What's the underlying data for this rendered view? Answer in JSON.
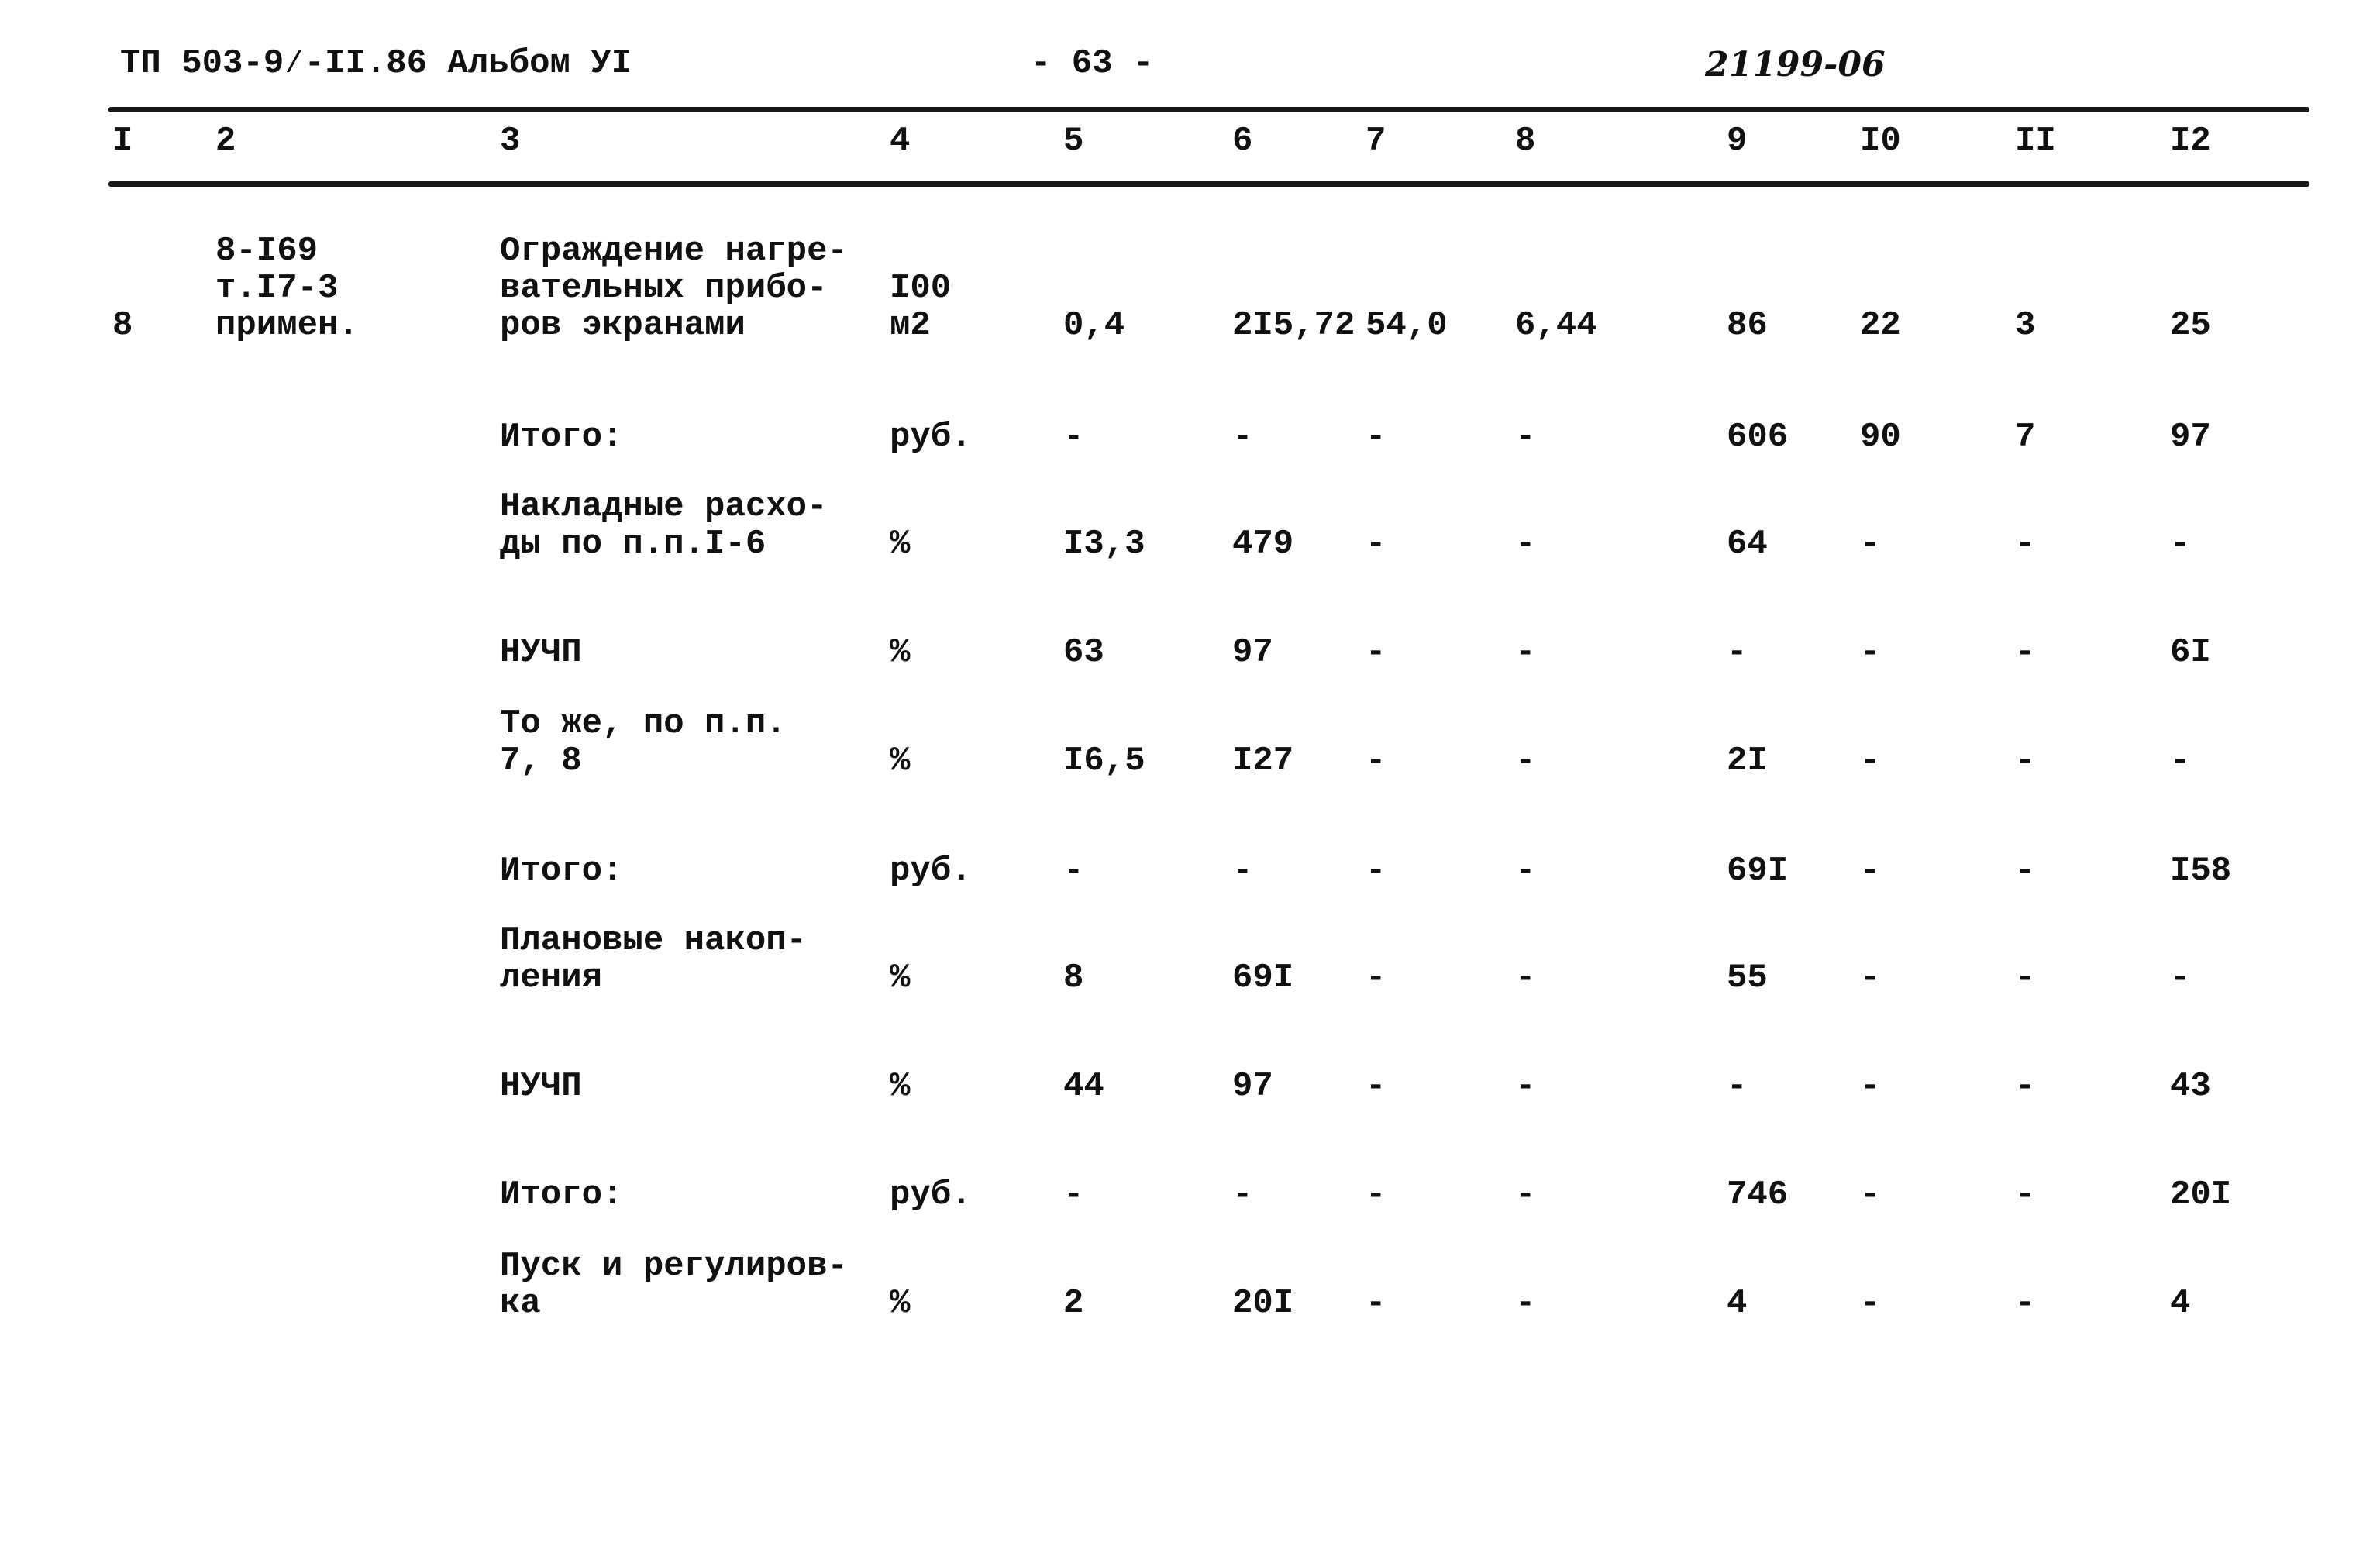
{
  "header": {
    "doc_ref": "ТП 503-9⁄-II.86 Альбом УI",
    "page": "- 63 -",
    "code": "21199-06"
  },
  "columns": [
    "I",
    "2",
    "3",
    "4",
    "5",
    "6",
    "7",
    "8",
    "9",
    "I0",
    "II",
    "I2"
  ],
  "rows": [
    {
      "c1": "8",
      "c2": "8-I69\nт.I7-3\nпримен.",
      "c3": "Ограждение нагре-\nвательных прибо-\nров экранами",
      "c4": "I00\nм2",
      "c5": "0,4",
      "c6": "2I5,72",
      "c7": "54,0",
      "c8": "6,44",
      "c9": "86",
      "c10": "22",
      "c11": "3",
      "c12": "25"
    },
    {
      "c1": "",
      "c2": "",
      "c3": "Итого:",
      "c4": "руб.",
      "c5": "-",
      "c6": "-",
      "c7": "-",
      "c8": "-",
      "c9": "606",
      "c10": "90",
      "c11": "7",
      "c12": "97"
    },
    {
      "c1": "",
      "c2": "",
      "c3": "Накладные расхо-\nды по п.п.I-6",
      "c4": "%",
      "c5": "I3,3",
      "c6": "479",
      "c7": "-",
      "c8": "-",
      "c9": "64",
      "c10": "-",
      "c11": "-",
      "c12": "-"
    },
    {
      "c1": "",
      "c2": "",
      "c3": "НУЧП",
      "c4": "%",
      "c5": "63",
      "c6": "97",
      "c7": "-",
      "c8": "-",
      "c9": "-",
      "c10": "-",
      "c11": "-",
      "c12": "6I"
    },
    {
      "c1": "",
      "c2": "",
      "c3": "То же, по п.п.\n7, 8",
      "c4": "%",
      "c5": "I6,5",
      "c6": "I27",
      "c7": "-",
      "c8": "-",
      "c9": "2I",
      "c10": "-",
      "c11": "-",
      "c12": "-"
    },
    {
      "c1": "",
      "c2": "",
      "c3": "Итого:",
      "c4": "руб.",
      "c5": "-",
      "c6": "-",
      "c7": "-",
      "c8": "-",
      "c9": "69I",
      "c10": "-",
      "c11": "-",
      "c12": "I58"
    },
    {
      "c1": "",
      "c2": "",
      "c3": "Плановые накоп-\nления",
      "c4": "%",
      "c5": "8",
      "c6": "69I",
      "c7": "-",
      "c8": "-",
      "c9": "55",
      "c10": "-",
      "c11": "-",
      "c12": "-"
    },
    {
      "c1": "",
      "c2": "",
      "c3": "НУЧП",
      "c4": "%",
      "c5": "44",
      "c6": "97",
      "c7": "-",
      "c8": "-",
      "c9": "-",
      "c10": "-",
      "c11": "-",
      "c12": "43"
    },
    {
      "c1": "",
      "c2": "",
      "c3": "Итого:",
      "c4": "руб.",
      "c5": "-",
      "c6": "-",
      "c7": "-",
      "c8": "-",
      "c9": "746",
      "c10": "-",
      "c11": "-",
      "c12": "20I"
    },
    {
      "c1": "",
      "c2": "",
      "c3": "Пуск и регулиров-\nка",
      "c4": "%",
      "c5": "2",
      "c6": "20I",
      "c7": "-",
      "c8": "-",
      "c9": "4",
      "c10": "-",
      "c11": "-",
      "c12": "4"
    }
  ]
}
